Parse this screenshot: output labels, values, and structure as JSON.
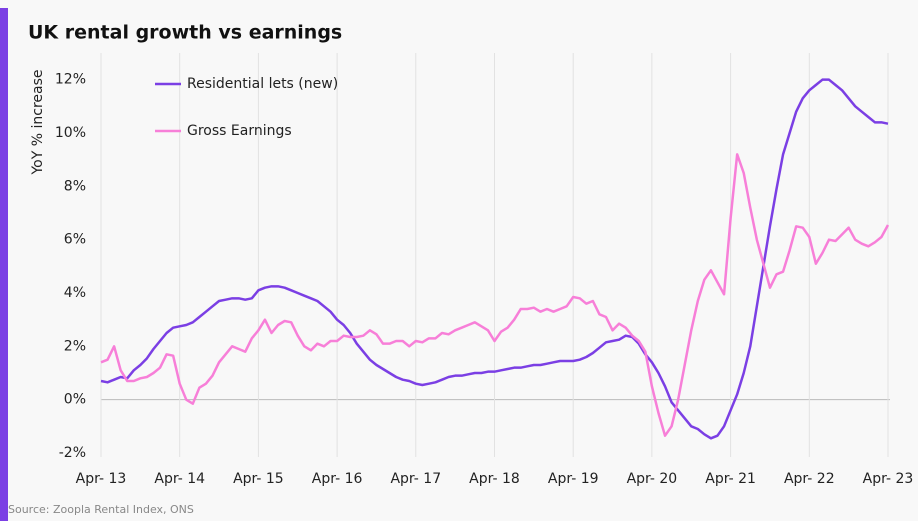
{
  "chart_data": {
    "type": "line",
    "title": "UK rental growth vs earnings",
    "y_label": "YoY % increase",
    "source": "Source: Zoopla Rental Index, ONS",
    "categories": [
      "Apr- 13",
      null,
      null,
      null,
      null,
      null,
      null,
      null,
      null,
      null,
      null,
      null,
      "Apr- 14",
      null,
      null,
      null,
      null,
      null,
      null,
      null,
      null,
      null,
      null,
      null,
      "Apr- 15",
      null,
      null,
      null,
      null,
      null,
      null,
      null,
      null,
      null,
      null,
      null,
      "Apr- 16",
      null,
      null,
      null,
      null,
      null,
      null,
      null,
      null,
      null,
      null,
      null,
      "Apr- 17",
      null,
      null,
      null,
      null,
      null,
      null,
      null,
      null,
      null,
      null,
      null,
      "Apr- 18",
      null,
      null,
      null,
      null,
      null,
      null,
      null,
      null,
      null,
      null,
      null,
      "Apr- 19",
      null,
      null,
      null,
      null,
      null,
      null,
      null,
      null,
      null,
      null,
      null,
      "Apr- 20",
      null,
      null,
      null,
      null,
      null,
      null,
      null,
      null,
      null,
      null,
      null,
      "Apr- 21",
      null,
      null,
      null,
      null,
      null,
      null,
      null,
      null,
      null,
      null,
      null,
      "Apr- 22",
      null,
      null,
      null,
      null,
      null,
      null,
      null,
      null,
      null,
      null,
      null,
      "Apr- 23"
    ],
    "series": [
      {
        "name": "Residential lets (new)",
        "color": "#7b3fe4",
        "values": [
          0.7,
          0.65,
          0.75,
          0.85,
          0.8,
          1.1,
          1.3,
          1.55,
          1.9,
          2.2,
          2.5,
          2.7,
          2.75,
          2.8,
          2.9,
          3.1,
          3.3,
          3.5,
          3.7,
          3.75,
          3.8,
          3.8,
          3.75,
          3.8,
          4.1,
          4.2,
          4.25,
          4.25,
          4.2,
          4.1,
          4.0,
          3.9,
          3.8,
          3.7,
          3.5,
          3.3,
          3.0,
          2.8,
          2.5,
          2.1,
          1.8,
          1.5,
          1.3,
          1.15,
          1.0,
          0.85,
          0.75,
          0.7,
          0.6,
          0.55,
          0.6,
          0.65,
          0.75,
          0.85,
          0.9,
          0.9,
          0.95,
          1.0,
          1.0,
          1.05,
          1.05,
          1.1,
          1.15,
          1.2,
          1.2,
          1.25,
          1.3,
          1.3,
          1.35,
          1.4,
          1.45,
          1.45,
          1.45,
          1.5,
          1.6,
          1.75,
          1.95,
          2.15,
          2.2,
          2.25,
          2.4,
          2.35,
          2.1,
          1.7,
          1.4,
          1.0,
          0.5,
          -0.1,
          -0.4,
          -0.7,
          -1.0,
          -1.1,
          -1.3,
          -1.45,
          -1.35,
          -1.0,
          -0.4,
          0.2,
          1.0,
          2.0,
          3.5,
          5.0,
          6.5,
          7.9,
          9.2,
          10.0,
          10.8,
          11.3,
          11.6,
          11.8,
          12.0,
          12.0,
          11.8,
          11.6,
          11.3,
          11.0,
          10.8,
          10.6,
          10.4,
          10.4,
          10.35
        ]
      },
      {
        "name": "Gross Earnings",
        "color": "#f77fd8",
        "values": [
          1.4,
          1.5,
          2.0,
          1.1,
          0.7,
          0.7,
          0.8,
          0.85,
          1.0,
          1.2,
          1.7,
          1.65,
          0.6,
          0.0,
          -0.15,
          0.45,
          0.6,
          0.9,
          1.4,
          1.7,
          2.0,
          1.9,
          1.8,
          2.3,
          2.6,
          3.0,
          2.5,
          2.8,
          2.95,
          2.9,
          2.4,
          2.0,
          1.85,
          2.1,
          2.0,
          2.2,
          2.2,
          2.4,
          2.35,
          2.35,
          2.4,
          2.6,
          2.45,
          2.1,
          2.1,
          2.2,
          2.2,
          2.0,
          2.2,
          2.15,
          2.3,
          2.3,
          2.5,
          2.45,
          2.6,
          2.7,
          2.8,
          2.9,
          2.75,
          2.6,
          2.2,
          2.55,
          2.7,
          3.0,
          3.4,
          3.4,
          3.45,
          3.3,
          3.4,
          3.3,
          3.4,
          3.5,
          3.85,
          3.8,
          3.6,
          3.7,
          3.2,
          3.1,
          2.6,
          2.85,
          2.7,
          2.4,
          2.2,
          1.8,
          0.5,
          -0.5,
          -1.35,
          -1.0,
          0.0,
          1.3,
          2.6,
          3.7,
          4.5,
          4.85,
          4.4,
          3.95,
          6.8,
          9.2,
          8.5,
          7.2,
          6.0,
          5.1,
          4.2,
          4.7,
          4.8,
          5.6,
          6.5,
          6.45,
          6.1,
          5.1,
          5.5,
          6.0,
          5.95,
          6.2,
          6.45,
          6.0,
          5.85,
          5.75,
          5.9,
          6.1,
          6.55
        ]
      }
    ],
    "ylim": [
      -2,
      13
    ],
    "yticks": [
      {
        "value": -2,
        "label": "-2%"
      },
      {
        "value": 0,
        "label": "0%"
      },
      {
        "value": 2,
        "label": "2%"
      },
      {
        "value": 4,
        "label": "4%"
      },
      {
        "value": 6,
        "label": "6%"
      },
      {
        "value": 8,
        "label": "8%"
      },
      {
        "value": 10,
        "label": "10%"
      },
      {
        "value": 12,
        "label": "12%"
      }
    ],
    "legend": "upper left",
    "grid": true
  }
}
